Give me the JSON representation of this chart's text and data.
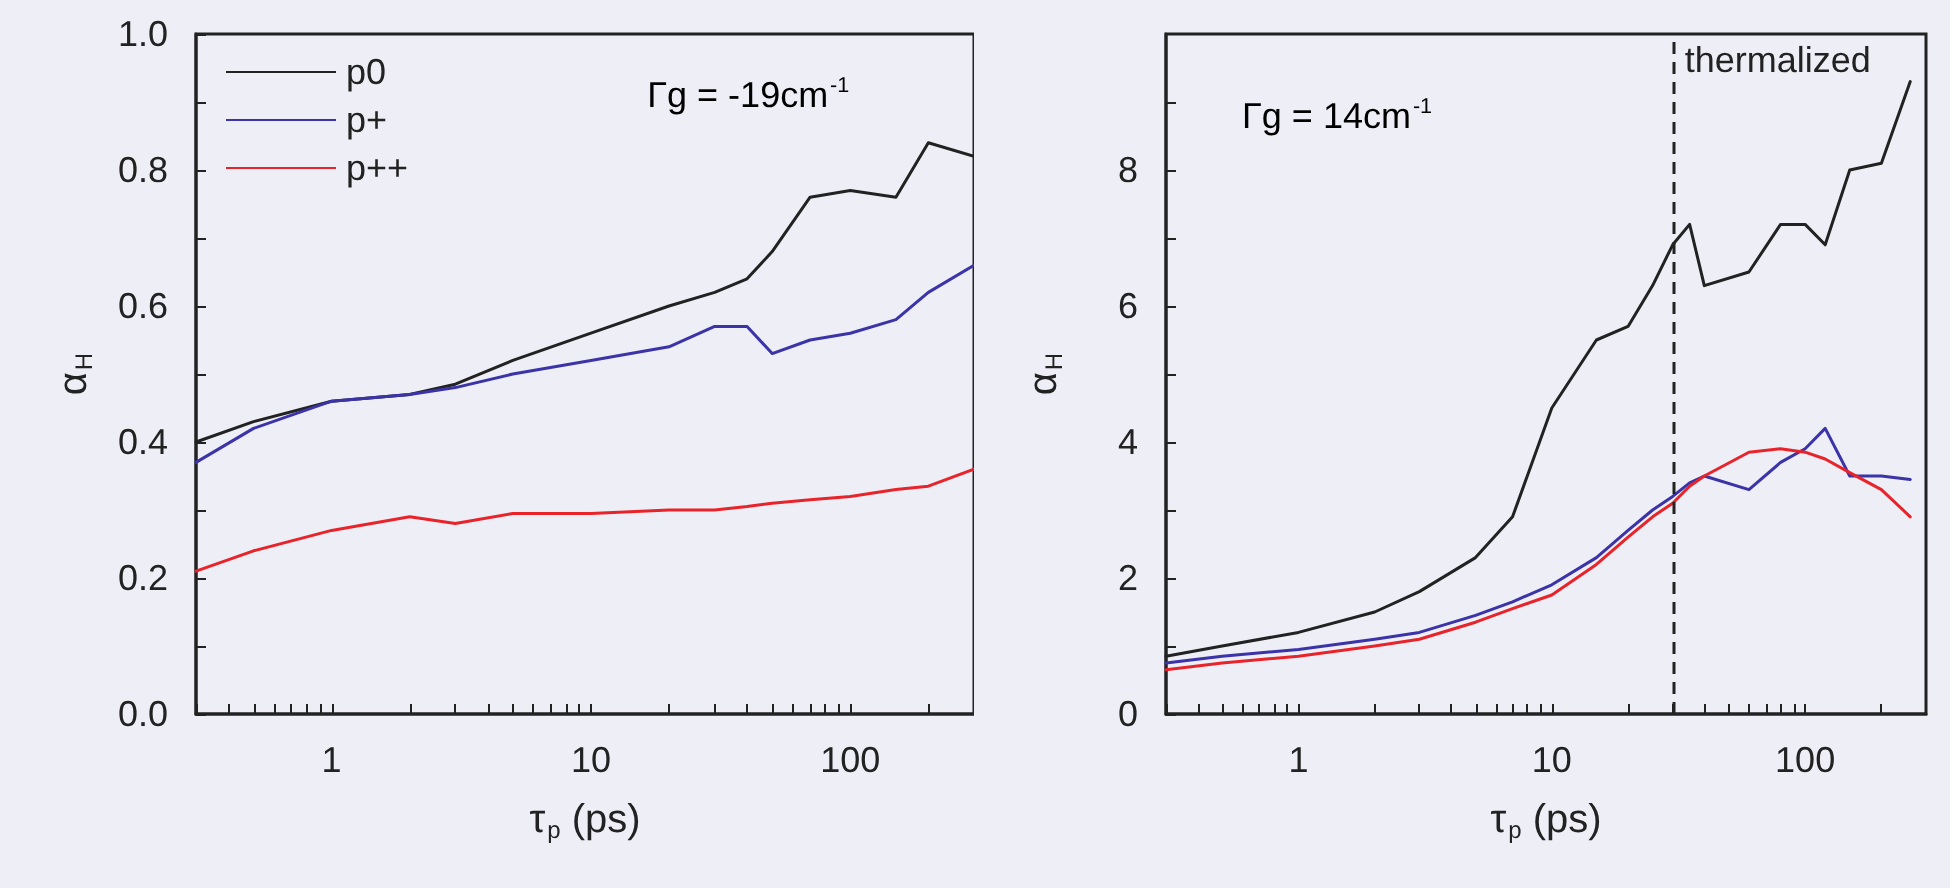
{
  "chart_data": [
    {
      "type": "line",
      "xlabel": "τ$_{p}$ (ps)",
      "ylabel": "α$_{H}$",
      "log": "x",
      "legend": "top left",
      "annotations": [
        "Γg = -19cm$^{-1}$"
      ],
      "xlim": [
        0.3,
        300
      ],
      "xticks": [
        {
          "value": 0.3,
          "label": null
        },
        {
          "value": 0.4,
          "label": null
        },
        {
          "value": 0.5,
          "label": null
        },
        {
          "value": 0.6,
          "label": null
        },
        {
          "value": 0.7,
          "label": null
        },
        {
          "value": 0.8,
          "label": null
        },
        {
          "value": 0.9,
          "label": null
        },
        1,
        {
          "value": 2,
          "label": null
        },
        {
          "value": 3,
          "label": null
        },
        {
          "value": 4,
          "label": null
        },
        {
          "value": 5,
          "label": null
        },
        {
          "value": 6,
          "label": null
        },
        {
          "value": 7,
          "label": null
        },
        {
          "value": 8,
          "label": null
        },
        {
          "value": 9,
          "label": null
        },
        10,
        {
          "value": 20,
          "label": null
        },
        {
          "value": 30,
          "label": null
        },
        {
          "value": 40,
          "label": null
        },
        {
          "value": 50,
          "label": null
        },
        {
          "value": 60,
          "label": null
        },
        {
          "value": 70,
          "label": null
        },
        {
          "value": 80,
          "label": null
        },
        {
          "value": 90,
          "label": null
        },
        100,
        {
          "value": 200,
          "label": null
        }
      ],
      "ylim": [
        0,
        1
      ],
      "yticks": [
        {
          "value": 0,
          "label": "0.0"
        },
        {
          "value": 0.1,
          "label": null
        },
        {
          "value": 0.2,
          "label": "0.2"
        },
        {
          "value": 0.3,
          "label": null
        },
        {
          "value": 0.4,
          "label": "0.4"
        },
        {
          "value": 0.5,
          "label": null
        },
        {
          "value": 0.6,
          "label": "0.6"
        },
        {
          "value": 0.7,
          "label": null
        },
        {
          "value": 0.8,
          "label": "0.8"
        },
        {
          "value": 0.9,
          "label": null
        },
        {
          "value": 1,
          "label": "1.0"
        }
      ],
      "x": [
        0.3,
        0.5,
        1,
        2,
        3,
        5,
        10,
        20,
        30,
        40,
        50,
        70,
        100,
        150,
        200,
        300
      ],
      "series": [
        {
          "name": "p0",
          "color": "#222222",
          "values": [
            0.4,
            0.43,
            0.46,
            0.47,
            0.485,
            0.52,
            0.56,
            0.6,
            0.62,
            0.64,
            0.68,
            0.76,
            0.77,
            0.76,
            0.84,
            0.82
          ]
        },
        {
          "name": "p+",
          "color": "#3b33a8",
          "values": [
            0.37,
            0.42,
            0.46,
            0.47,
            0.48,
            0.5,
            0.52,
            0.54,
            0.57,
            0.57,
            0.53,
            0.55,
            0.56,
            0.58,
            0.62,
            0.66
          ]
        },
        {
          "name": "p++",
          "color": "#e8232a",
          "values": [
            0.21,
            0.24,
            0.27,
            0.29,
            0.28,
            0.295,
            0.295,
            0.3,
            0.3,
            0.305,
            0.31,
            0.315,
            0.32,
            0.33,
            0.335,
            0.36
          ]
        }
      ]
    },
    {
      "type": "line",
      "xlabel": "τ$_{p}$ (ps)",
      "ylabel": "α$_{H}$",
      "log": "x",
      "annotations": [
        "Γg = 14cm$^{-1}$"
      ],
      "ref_lines": [
        {
          "axis": "x",
          "value": 30,
          "label": "thermalized",
          "line_style": "dashed",
          "color": "#222222"
        }
      ],
      "xlim": [
        0.3,
        300
      ],
      "xticks": [
        {
          "value": 0.3,
          "label": null
        },
        {
          "value": 0.4,
          "label": null
        },
        {
          "value": 0.5,
          "label": null
        },
        {
          "value": 0.6,
          "label": null
        },
        {
          "value": 0.7,
          "label": null
        },
        {
          "value": 0.8,
          "label": null
        },
        {
          "value": 0.9,
          "label": null
        },
        1,
        {
          "value": 2,
          "label": null
        },
        {
          "value": 3,
          "label": null
        },
        {
          "value": 4,
          "label": null
        },
        {
          "value": 5,
          "label": null
        },
        {
          "value": 6,
          "label": null
        },
        {
          "value": 7,
          "label": null
        },
        {
          "value": 8,
          "label": null
        },
        {
          "value": 9,
          "label": null
        },
        10,
        {
          "value": 20,
          "label": null
        },
        {
          "value": 30,
          "label": null
        },
        {
          "value": 40,
          "label": null
        },
        {
          "value": 50,
          "label": null
        },
        {
          "value": 60,
          "label": null
        },
        {
          "value": 70,
          "label": null
        },
        {
          "value": 80,
          "label": null
        },
        {
          "value": 90,
          "label": null
        },
        100,
        {
          "value": 200,
          "label": null
        }
      ],
      "ylim": [
        0,
        10
      ],
      "yticks": [
        0,
        {
          "value": 1,
          "label": null
        },
        2,
        {
          "value": 3,
          "label": null
        },
        4,
        {
          "value": 5,
          "label": null
        },
        6,
        {
          "value": 7,
          "label": null
        },
        8,
        {
          "value": 9,
          "label": null
        }
      ],
      "x": [
        0.3,
        0.5,
        1,
        2,
        3,
        5,
        7,
        10,
        15,
        20,
        25,
        30,
        35,
        40,
        60,
        80,
        100,
        120,
        150,
        200,
        260
      ],
      "series": [
        {
          "color": "#222222",
          "values": [
            0.85,
            1.0,
            1.2,
            1.5,
            1.8,
            2.3,
            2.9,
            4.5,
            5.5,
            5.7,
            6.3,
            6.9,
            7.2,
            6.3,
            6.5,
            7.2,
            7.2,
            6.9,
            8.0,
            8.1,
            9.3
          ]
        },
        {
          "color": "#3b33a8",
          "values": [
            0.75,
            0.85,
            0.95,
            1.1,
            1.2,
            1.45,
            1.65,
            1.9,
            2.3,
            2.7,
            3.0,
            3.2,
            3.4,
            3.5,
            3.3,
            3.7,
            3.9,
            4.2,
            3.5,
            3.5,
            3.45
          ]
        },
        {
          "color": "#e8232a",
          "values": [
            0.65,
            0.75,
            0.85,
            1.0,
            1.1,
            1.35,
            1.55,
            1.75,
            2.2,
            2.6,
            2.9,
            3.1,
            3.35,
            3.5,
            3.85,
            3.9,
            3.85,
            3.75,
            3.55,
            3.3,
            2.9
          ]
        }
      ]
    }
  ]
}
